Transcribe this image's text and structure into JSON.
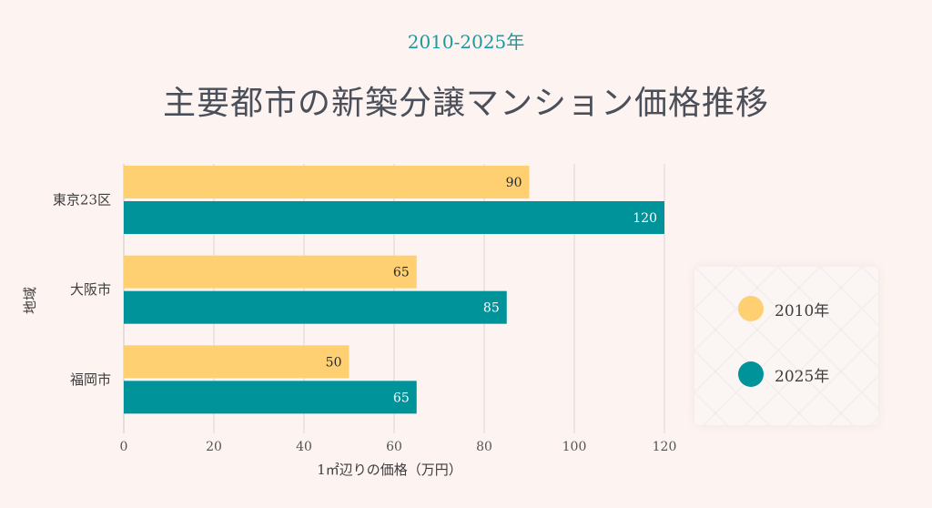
{
  "header": {
    "subtitle": "2010-2025年",
    "title": "主要都市の新築分譲マンション価格推移"
  },
  "colors": {
    "series_2010": "#ffd071",
    "series_2025": "#00939a"
  },
  "chart_data": {
    "type": "bar",
    "orientation": "horizontal",
    "categories": [
      "東京23区",
      "大阪市",
      "福岡市"
    ],
    "series": [
      {
        "name": "2010年",
        "values": [
          90,
          65,
          50
        ]
      },
      {
        "name": "2025年",
        "values": [
          120,
          85,
          65
        ]
      }
    ],
    "xlabel": "1㎡辺りの価格（万円）",
    "ylabel": "地域",
    "xlim": [
      0,
      120
    ],
    "xticks": [
      0,
      20,
      40,
      60,
      80,
      100,
      120
    ],
    "grid": true,
    "legend_position": "right"
  }
}
